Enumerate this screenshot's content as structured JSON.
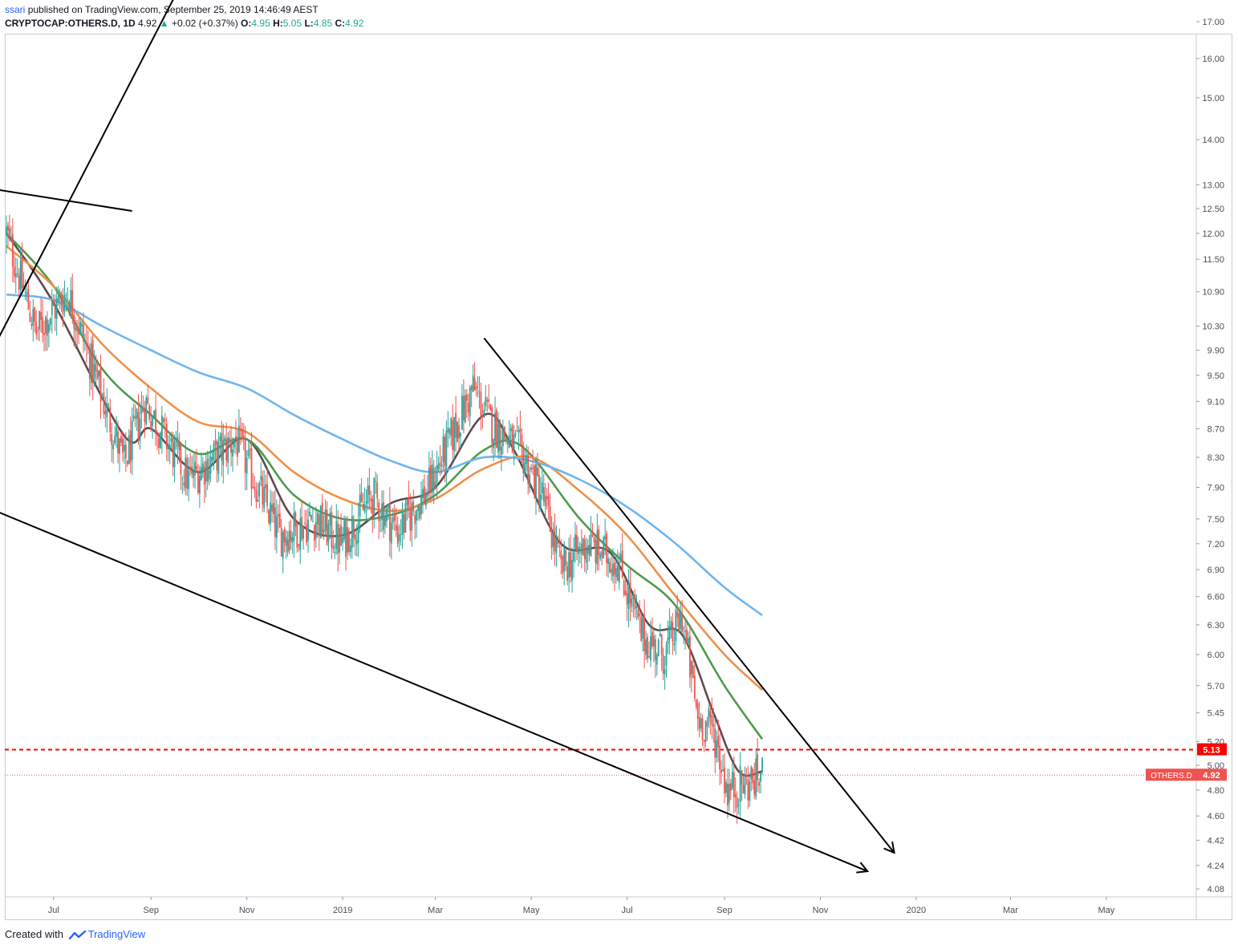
{
  "header": {
    "user": "ssari",
    "published_text": "published on TradingView.com, September 25, 2019 14:46:49 AEST",
    "symbol": "CRYPTOCAP:OTHERS.D, 1D",
    "last": "4.92",
    "change": "+0.02 (+0.37%)",
    "o_label": "O:",
    "o_value": "4.95",
    "h_label": "H:",
    "h_value": "5.05",
    "l_label": "L:",
    "l_value": "4.85",
    "c_label": "C:",
    "c_value": "4.92"
  },
  "footer": {
    "created_with": "Created with",
    "brand": "TradingView"
  },
  "colors": {
    "up": "#26a69a",
    "down": "#ef5350",
    "ma_dark": "#5d4b4b",
    "ma_green": "#4c9b4c",
    "ma_orange": "#f0904a",
    "ma_blue": "#6fb5ef",
    "level": "#ff0000",
    "tag_bg": "#ef5350"
  },
  "chart_data": {
    "type": "candlestick",
    "symbol": "OTHERS.D",
    "scale": "log",
    "y_ticks": [
      "17.00",
      "16.00",
      "15.00",
      "14.00",
      "13.00",
      "12.50",
      "12.00",
      "11.50",
      "10.90",
      "10.30",
      "9.90",
      "9.50",
      "9.10",
      "8.70",
      "8.30",
      "7.90",
      "7.50",
      "7.20",
      "6.90",
      "6.60",
      "6.30",
      "6.00",
      "5.70",
      "5.45",
      "5.20",
      "5.00",
      "4.80",
      "4.60",
      "4.42",
      "4.24",
      "4.08"
    ],
    "x_ticks": [
      "Jul",
      "Sep",
      "Nov",
      "2019",
      "Mar",
      "May",
      "Jul",
      "Sep",
      "Nov",
      "2020",
      "Mar",
      "May"
    ],
    "price_anchors": [
      [
        "2018-06-01",
        12.0
      ],
      [
        "2018-06-20",
        10.2
      ],
      [
        "2018-07-10",
        10.9
      ],
      [
        "2018-08-15",
        8.2
      ],
      [
        "2018-08-28",
        9.1
      ],
      [
        "2018-09-25",
        8.0
      ],
      [
        "2018-10-25",
        8.55
      ],
      [
        "2018-11-22",
        7.3
      ],
      [
        "2018-12-15",
        7.5
      ],
      [
        "2018-12-31",
        7.2
      ],
      [
        "2019-01-20",
        7.8
      ],
      [
        "2019-02-05",
        7.35
      ],
      [
        "2019-02-25",
        7.9
      ],
      [
        "2019-03-25",
        9.3
      ],
      [
        "2019-04-05",
        8.8
      ],
      [
        "2019-04-25",
        8.35
      ],
      [
        "2019-05-08",
        7.8
      ],
      [
        "2019-05-20",
        6.9
      ],
      [
        "2019-06-05",
        7.2
      ],
      [
        "2019-06-25",
        7.0
      ],
      [
        "2019-07-10",
        6.2
      ],
      [
        "2019-07-25",
        6.0
      ],
      [
        "2019-08-05",
        6.4
      ],
      [
        "2019-08-15",
        5.4
      ],
      [
        "2019-08-25",
        5.3
      ],
      [
        "2019-09-03",
        4.8
      ],
      [
        "2019-09-15",
        4.85
      ],
      [
        "2019-09-25",
        4.92
      ]
    ],
    "moving_averages": [
      {
        "color": "#5d4b4b",
        "points": [
          [
            "2018-06-01",
            12.0
          ],
          [
            "2018-07-01",
            10.7
          ],
          [
            "2018-08-15",
            8.6
          ],
          [
            "2018-09-01",
            8.7
          ],
          [
            "2018-10-01",
            8.1
          ],
          [
            "2018-11-01",
            8.55
          ],
          [
            "2018-12-01",
            7.5
          ],
          [
            "2019-01-01",
            7.3
          ],
          [
            "2019-02-01",
            7.7
          ],
          [
            "2019-03-01",
            7.9
          ],
          [
            "2019-04-01",
            8.9
          ],
          [
            "2019-04-20",
            8.4
          ],
          [
            "2019-05-20",
            7.2
          ],
          [
            "2019-06-20",
            7.1
          ],
          [
            "2019-07-15",
            6.3
          ],
          [
            "2019-08-05",
            6.2
          ],
          [
            "2019-08-25",
            5.45
          ],
          [
            "2019-09-10",
            4.95
          ],
          [
            "2019-09-25",
            4.95
          ]
        ]
      },
      {
        "color": "#4c9b4c",
        "points": [
          [
            "2018-06-01",
            12.0
          ],
          [
            "2018-07-01",
            11.0
          ],
          [
            "2018-08-01",
            9.6
          ],
          [
            "2018-09-01",
            8.9
          ],
          [
            "2018-10-01",
            8.35
          ],
          [
            "2018-11-01",
            8.55
          ],
          [
            "2018-12-01",
            7.8
          ],
          [
            "2019-01-01",
            7.5
          ],
          [
            "2019-02-01",
            7.55
          ],
          [
            "2019-03-01",
            7.8
          ],
          [
            "2019-04-01",
            8.4
          ],
          [
            "2019-04-25",
            8.45
          ],
          [
            "2019-06-01",
            7.5
          ],
          [
            "2019-07-01",
            6.95
          ],
          [
            "2019-08-01",
            6.5
          ],
          [
            "2019-09-01",
            5.7
          ],
          [
            "2019-09-25",
            5.22
          ]
        ]
      },
      {
        "color": "#f0904a",
        "points": [
          [
            "2018-06-01",
            11.75
          ],
          [
            "2018-07-01",
            11.0
          ],
          [
            "2018-08-01",
            10.0
          ],
          [
            "2018-09-01",
            9.3
          ],
          [
            "2018-10-01",
            8.8
          ],
          [
            "2018-11-01",
            8.65
          ],
          [
            "2018-12-01",
            8.1
          ],
          [
            "2019-01-01",
            7.75
          ],
          [
            "2019-02-01",
            7.6
          ],
          [
            "2019-03-01",
            7.75
          ],
          [
            "2019-04-01",
            8.15
          ],
          [
            "2019-05-01",
            8.3
          ],
          [
            "2019-06-01",
            7.85
          ],
          [
            "2019-07-01",
            7.3
          ],
          [
            "2019-08-01",
            6.6
          ],
          [
            "2019-09-01",
            6.0
          ],
          [
            "2019-09-25",
            5.66
          ]
        ]
      },
      {
        "color": "#6fb5ef",
        "points": [
          [
            "2018-06-01",
            10.85
          ],
          [
            "2018-07-01",
            10.75
          ],
          [
            "2018-08-01",
            10.3
          ],
          [
            "2018-09-01",
            9.9
          ],
          [
            "2018-10-01",
            9.55
          ],
          [
            "2018-11-01",
            9.3
          ],
          [
            "2018-12-01",
            8.9
          ],
          [
            "2019-01-01",
            8.55
          ],
          [
            "2019-02-01",
            8.25
          ],
          [
            "2019-03-01",
            8.1
          ],
          [
            "2019-04-01",
            8.3
          ],
          [
            "2019-05-01",
            8.25
          ],
          [
            "2019-06-01",
            8.0
          ],
          [
            "2019-07-01",
            7.65
          ],
          [
            "2019-08-01",
            7.2
          ],
          [
            "2019-09-01",
            6.7
          ],
          [
            "2019-09-25",
            6.4
          ]
        ]
      }
    ],
    "levels": [
      {
        "value": 5.13,
        "label": "5.13",
        "style": "dashed",
        "color": "#ff0000"
      },
      {
        "value": 4.92,
        "label": "4.92",
        "name": "OTHERS.D",
        "style": "dotted",
        "color": "#ef5350"
      }
    ],
    "trendlines": [
      {
        "from": [
          "2018-05-25",
          7.6
        ],
        "to": [
          "2019-12-01",
          4.2
        ],
        "arrow": true
      },
      {
        "from": [
          "2019-04-01",
          10.1
        ],
        "to": [
          "2019-12-18",
          4.33
        ],
        "arrow": true
      },
      {
        "from": [
          "2018-05-25",
          10.0
        ],
        "to": [
          "2018-09-30",
          19.0
        ],
        "arrow": false
      },
      {
        "from": [
          "2018-05-25",
          12.9
        ],
        "to": [
          "2018-08-20",
          12.45
        ],
        "arrow": false
      }
    ]
  }
}
